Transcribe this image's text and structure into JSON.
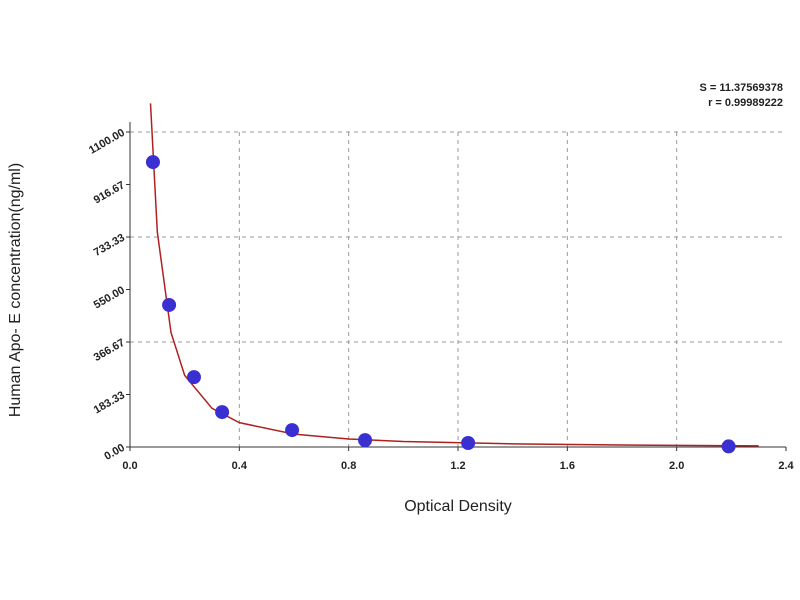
{
  "chart_data": {
    "type": "scatter",
    "x_label": "Optical Density",
    "y_label": "Human Apo- E concentration(ng/ml)",
    "annotations": [
      "S = 11.37569378",
      "r = 0.99989222"
    ],
    "xlim": [
      0,
      2.4
    ],
    "xticks": [
      {
        "value": 0,
        "label": "0.0"
      },
      0.4,
      0.8,
      1.2,
      1.6,
      {
        "value": 2,
        "label": "2.0"
      },
      2.4
    ],
    "ylim": [
      0,
      1100
    ],
    "yticks": [
      {
        "value": 0,
        "label": "0.00"
      },
      183.33,
      366.67,
      {
        "value": 550,
        "label": "550.00"
      },
      733.33,
      916.67,
      {
        "value": 1100,
        "label": "1100.00"
      }
    ],
    "grid": true,
    "series": [
      {
        "type": "scatter",
        "color": "#3a2fd0",
        "x": [
          0.084,
          0.143,
          0.234,
          0.337,
          0.593,
          0.86,
          1.237,
          2.19
        ],
        "values": [
          995,
          496,
          244,
          122,
          59,
          24,
          14,
          2
        ]
      },
      {
        "type": "line",
        "color": "#b02020",
        "x": [
          0.075,
          0.1,
          0.15,
          0.2,
          0.3,
          0.4,
          0.6,
          0.8,
          1.0,
          1.4,
          1.8,
          2.3
        ],
        "values": [
          1200,
          750,
          400,
          250,
          135,
          85,
          45,
          28,
          19,
          11,
          7,
          4
        ]
      }
    ]
  }
}
